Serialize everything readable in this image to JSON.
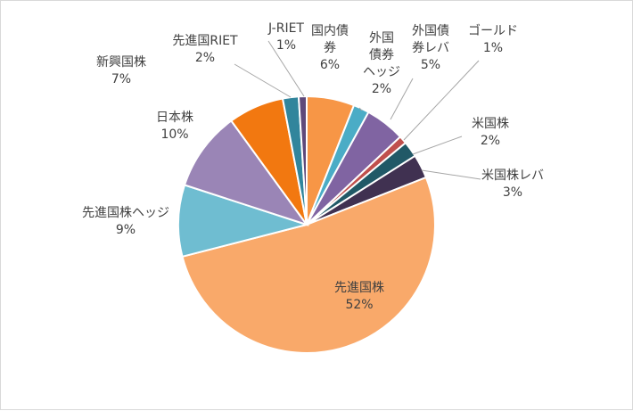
{
  "chart_data": {
    "type": "pie",
    "start_angle_deg": 0,
    "direction": "clockwise",
    "slices": [
      {
        "name": "国内債券",
        "value": 6,
        "pct_label": "6%",
        "color": "#f79646"
      },
      {
        "name": "外国債券ヘッジ",
        "value": 2,
        "pct_label": "2%",
        "color": "#4bacc6"
      },
      {
        "name": "外国債券レバ",
        "value": 5,
        "pct_label": "5%",
        "color": "#8064a2"
      },
      {
        "name": "ゴールド",
        "value": 1,
        "pct_label": "1%",
        "color": "#c0504d"
      },
      {
        "name": "米国株",
        "value": 2,
        "pct_label": "2%",
        "color": "#215967"
      },
      {
        "name": "米国株レバ",
        "value": 3,
        "pct_label": "3%",
        "color": "#403151"
      },
      {
        "name": "先進国株",
        "value": 52,
        "pct_label": "52%",
        "color": "#f9a96a"
      },
      {
        "name": "先進国株ヘッジ",
        "value": 9,
        "pct_label": "9%",
        "color": "#6fbdd1"
      },
      {
        "name": "日本株",
        "value": 10,
        "pct_label": "10%",
        "color": "#9a85b6"
      },
      {
        "name": "新興国株",
        "value": 7,
        "pct_label": "7%",
        "color": "#f27810"
      },
      {
        "name": "先進国RIET",
        "value": 2,
        "pct_label": "2%",
        "color": "#31859c"
      },
      {
        "name": "J-RIET",
        "value": 1,
        "pct_label": "1%",
        "color": "#5f497a"
      }
    ],
    "labels": [
      {
        "lines": [
          "国内債",
          "券",
          "6%"
        ]
      },
      {
        "lines": [
          "外国",
          "債券",
          "ヘッジ",
          "2%"
        ]
      },
      {
        "lines": [
          "外国債",
          "券レバ",
          "5%"
        ]
      },
      {
        "lines": [
          "ゴールド",
          "1%"
        ]
      },
      {
        "lines": [
          "米国株",
          "2%"
        ]
      },
      {
        "lines": [
          "米国株レバ",
          "3%"
        ]
      },
      {
        "lines": [
          "先進国株",
          "52%"
        ]
      },
      {
        "lines": [
          "先進国株ヘッジ",
          "9%"
        ]
      },
      {
        "lines": [
          "日本株",
          "10%"
        ]
      },
      {
        "lines": [
          "新興国株",
          "7%"
        ]
      },
      {
        "lines": [
          "先進国RIET",
          "2%"
        ]
      },
      {
        "lines": [
          "J-RIET",
          "1%"
        ]
      }
    ]
  }
}
